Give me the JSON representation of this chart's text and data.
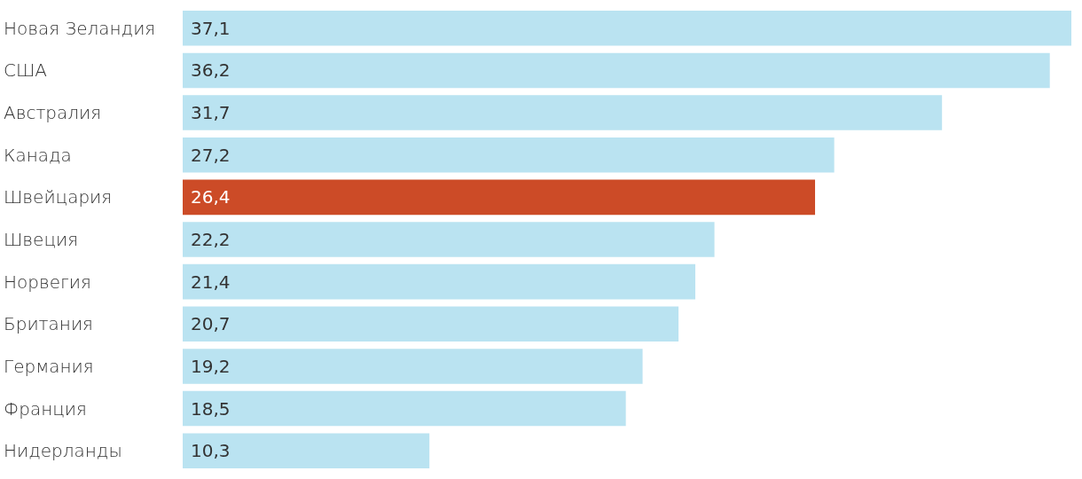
{
  "chart_data": {
    "type": "bar",
    "orientation": "horizontal",
    "categories": [
      "Новая Зеландия",
      "США",
      "Австралия",
      "Канада",
      "Швейцария",
      "Швеция",
      "Норвегия",
      "Британия",
      "Германия",
      "Франция",
      "Нидерланды"
    ],
    "values": [
      37.1,
      36.2,
      31.7,
      27.2,
      26.4,
      22.2,
      21.4,
      20.7,
      19.2,
      18.5,
      10.3
    ],
    "value_labels": [
      "37,1",
      "36,2",
      "31,7",
      "27,2",
      "26,4",
      "22,2",
      "21,4",
      "20,7",
      "19,2",
      "18,5",
      "10,3"
    ],
    "colors": [
      "#bae3f1",
      "#bae3f1",
      "#bae3f1",
      "#bae3f1",
      "#cc4b27",
      "#bae3f1",
      "#bae3f1",
      "#bae3f1",
      "#bae3f1",
      "#bae3f1",
      "#bae3f1"
    ],
    "xlim": [
      0,
      37.1
    ],
    "tick_labels": "y"
  }
}
